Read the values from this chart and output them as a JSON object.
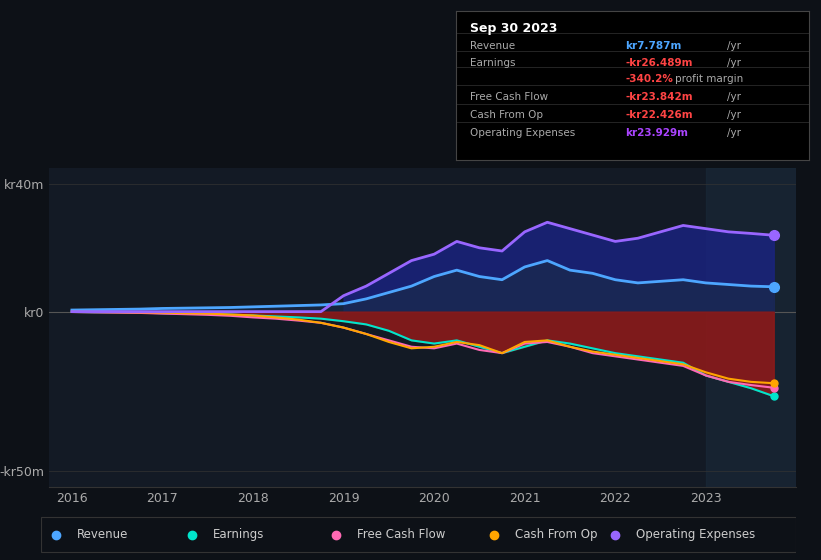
{
  "bg_color": "#0d1117",
  "plot_bg_color": "#131a25",
  "title": "Sep 30 2023",
  "info_box": {
    "Revenue": {
      "label": "Revenue",
      "value": "kr7.787m",
      "color": "#4da6ff"
    },
    "Earnings": {
      "label": "Earnings",
      "value": "-kr26.489m",
      "color": "#ff4444"
    },
    "profit_margin": {
      "value": "-340.2%",
      "suffix": "profit margin",
      "color": "#ff4444"
    },
    "Free Cash Flow": {
      "label": "Free Cash Flow",
      "value": "-kr23.842m",
      "color": "#ff4444"
    },
    "Cash From Op": {
      "label": "Cash From Op",
      "value": "-kr22.426m",
      "color": "#ff4444"
    },
    "Operating Expenses": {
      "label": "Operating Expenses",
      "value": "kr23.929m",
      "color": "#aa44ff"
    }
  },
  "years": [
    2016.0,
    2016.25,
    2016.5,
    2016.75,
    2017.0,
    2017.25,
    2017.5,
    2017.75,
    2018.0,
    2018.25,
    2018.5,
    2018.75,
    2019.0,
    2019.25,
    2019.5,
    2019.75,
    2020.0,
    2020.25,
    2020.5,
    2020.75,
    2021.0,
    2021.25,
    2021.5,
    2021.75,
    2022.0,
    2022.25,
    2022.5,
    2022.75,
    2023.0,
    2023.25,
    2023.5,
    2023.75
  ],
  "revenue": [
    0.5,
    0.6,
    0.7,
    0.8,
    1.0,
    1.1,
    1.2,
    1.3,
    1.5,
    1.7,
    1.9,
    2.1,
    2.5,
    4.0,
    6.0,
    8.0,
    11.0,
    13.0,
    11.0,
    10.0,
    14.0,
    16.0,
    13.0,
    12.0,
    10.0,
    9.0,
    9.5,
    10.0,
    9.0,
    8.5,
    8.0,
    7.787
  ],
  "earnings": [
    -0.1,
    -0.2,
    -0.2,
    -0.3,
    -0.5,
    -0.6,
    -0.7,
    -0.9,
    -1.2,
    -1.5,
    -1.8,
    -2.2,
    -3.0,
    -4.0,
    -6.0,
    -9.0,
    -10.0,
    -9.0,
    -11.0,
    -13.0,
    -11.0,
    -9.0,
    -10.0,
    -11.5,
    -13.0,
    -14.0,
    -15.0,
    -16.0,
    -20.0,
    -22.0,
    -24.0,
    -26.489
  ],
  "free_cash_flow": [
    -0.1,
    -0.2,
    -0.3,
    -0.4,
    -0.6,
    -0.8,
    -1.0,
    -1.3,
    -1.8,
    -2.2,
    -2.8,
    -3.5,
    -5.0,
    -7.0,
    -9.0,
    -11.0,
    -11.5,
    -10.0,
    -12.0,
    -13.0,
    -10.0,
    -9.5,
    -11.0,
    -13.0,
    -14.0,
    -15.0,
    -16.0,
    -17.0,
    -20.0,
    -22.0,
    -23.0,
    -23.842
  ],
  "cash_from_op": [
    -0.05,
    -0.1,
    -0.15,
    -0.2,
    -0.3,
    -0.5,
    -0.6,
    -0.9,
    -1.2,
    -1.8,
    -2.5,
    -3.5,
    -5.0,
    -7.0,
    -9.5,
    -11.5,
    -11.0,
    -9.5,
    -10.5,
    -13.0,
    -9.5,
    -9.0,
    -11.0,
    -12.5,
    -13.5,
    -14.5,
    -15.5,
    -16.5,
    -19.0,
    -21.0,
    -22.0,
    -22.426
  ],
  "operating_expenses": [
    0.0,
    0.0,
    0.0,
    0.0,
    0.0,
    0.0,
    0.0,
    0.0,
    0.0,
    0.0,
    0.0,
    0.0,
    5.0,
    8.0,
    12.0,
    16.0,
    18.0,
    22.0,
    20.0,
    19.0,
    25.0,
    28.0,
    26.0,
    24.0,
    22.0,
    23.0,
    25.0,
    27.0,
    26.0,
    25.0,
    24.5,
    23.929
  ],
  "xlim": [
    2015.75,
    2024.0
  ],
  "ylim": [
    -55,
    45
  ],
  "xticks": [
    2016,
    2017,
    2018,
    2019,
    2020,
    2021,
    2022,
    2023
  ],
  "revenue_color": "#4da6ff",
  "earnings_color": "#00e5cc",
  "fcf_color": "#ff69b4",
  "cashop_color": "#ffa500",
  "opex_color": "#9966ff",
  "fill_positive_color": "#1a237e",
  "fill_negative_color": "#8b1a1a",
  "legend_items": [
    {
      "label": "Revenue",
      "color": "#4da6ff"
    },
    {
      "label": "Earnings",
      "color": "#00e5cc"
    },
    {
      "label": "Free Cash Flow",
      "color": "#ff69b4"
    },
    {
      "label": "Cash From Op",
      "color": "#ffa500"
    },
    {
      "label": "Operating Expenses",
      "color": "#9966ff"
    }
  ]
}
